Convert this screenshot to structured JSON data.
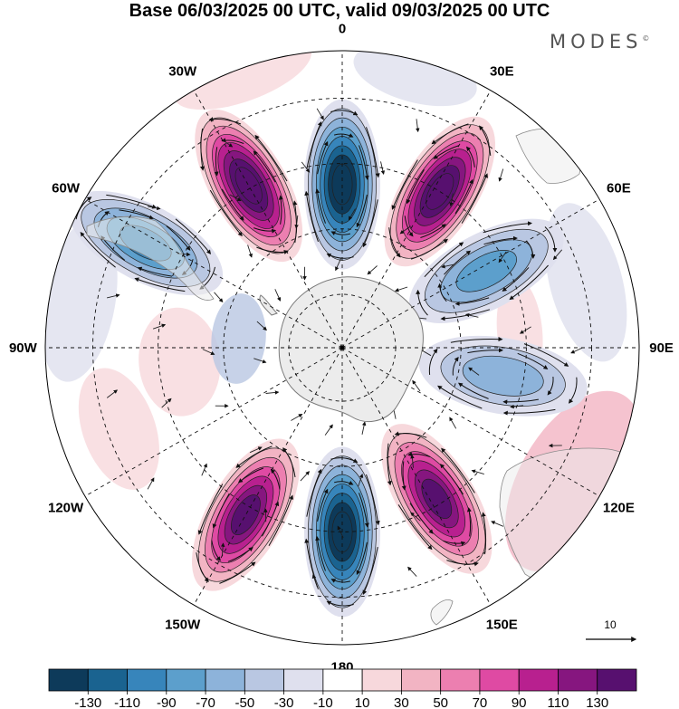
{
  "title": "Base 06/03/2025 00 UTC, valid 09/03/2025 00 UTC",
  "brand": "MODES",
  "brand_mark": "©",
  "projection": "south-polar-stereographic",
  "longitude_labels": [
    "0",
    "30E",
    "60E",
    "90E",
    "120E",
    "150E",
    "180",
    "150W",
    "120W",
    "90W",
    "60W",
    "30W"
  ],
  "reference_vector": {
    "label": "10",
    "icon": "arrow-right-icon"
  },
  "colorbar": {
    "colors": [
      "#0d3a5a",
      "#1a6390",
      "#3785bb",
      "#5c9fcc",
      "#8db3da",
      "#b9c7e2",
      "#dfe0ee",
      "#ffffff",
      "#f7d8dc",
      "#f2b4c3",
      "#ec7fb0",
      "#df4aa3",
      "#b8208f",
      "#86167f",
      "#57106f"
    ],
    "tick_labels": [
      "-130",
      "-110",
      "-90",
      "-70",
      "-50",
      "-30",
      "-10",
      "10",
      "30",
      "50",
      "70",
      "90",
      "110",
      "130"
    ]
  },
  "anomalies": [
    {
      "lon": 0,
      "colat": 0.55,
      "sign": "negative",
      "level": 7
    },
    {
      "lon": -30,
      "colat": 0.63,
      "sign": "positive",
      "level": 7
    },
    {
      "lon": 32,
      "colat": 0.62,
      "sign": "positive",
      "level": 7
    },
    {
      "lon": -62,
      "colat": 0.75,
      "sign": "negative",
      "level": 4
    },
    {
      "lon": 62,
      "colat": 0.55,
      "sign": "negative",
      "level": 3
    },
    {
      "lon": 100,
      "colat": 0.55,
      "sign": "negative",
      "level": 2
    },
    {
      "lon": 180,
      "colat": 0.62,
      "sign": "negative",
      "level": 7
    },
    {
      "lon": 148,
      "colat": 0.6,
      "sign": "positive",
      "level": 6
    },
    {
      "lon": -150,
      "colat": 0.65,
      "sign": "positive",
      "level": 6
    }
  ]
}
